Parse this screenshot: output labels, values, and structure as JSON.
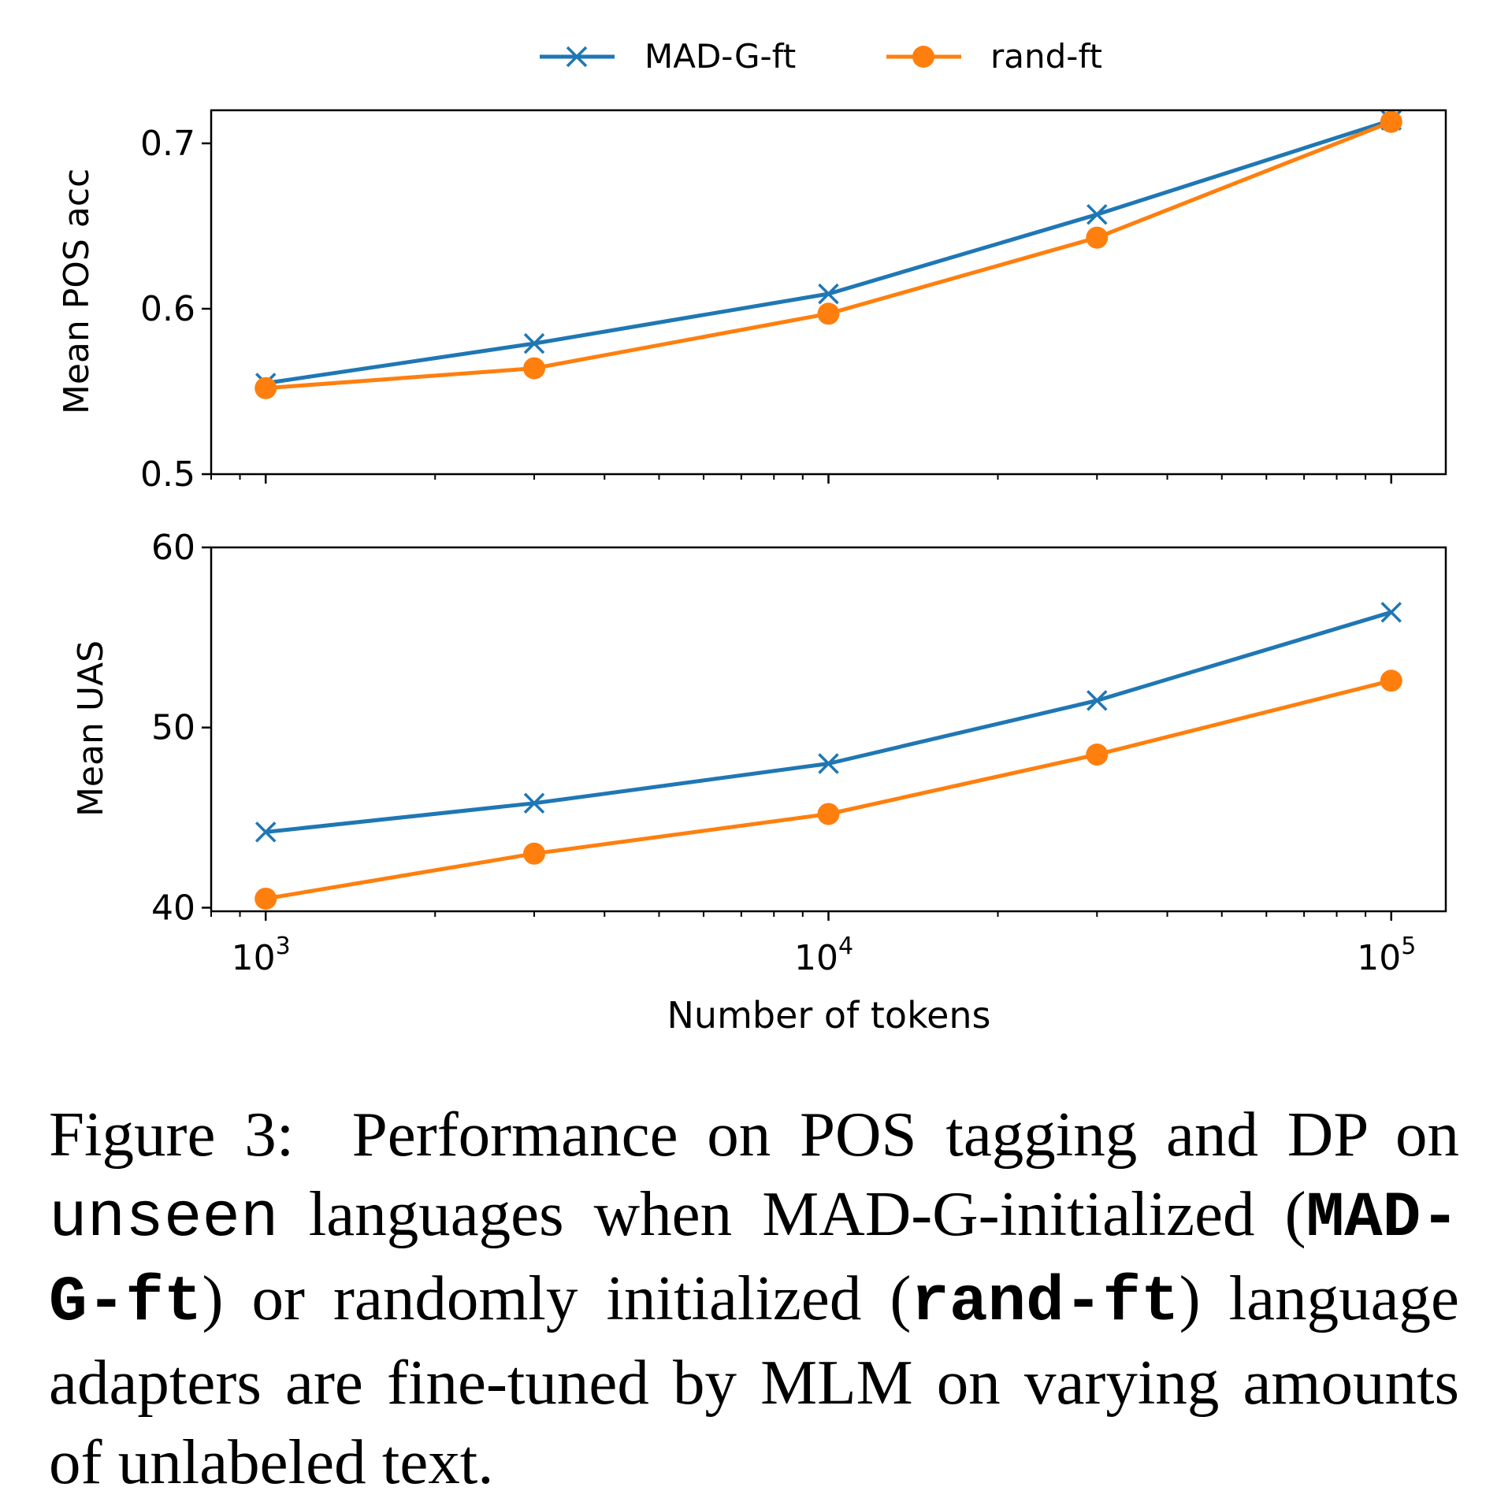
{
  "chart_data": [
    {
      "type": "line",
      "panel": "top",
      "title": "",
      "xlabel": "",
      "ylabel": "Mean POS acc",
      "xscale": "log",
      "xlim": [
        800,
        125000
      ],
      "ylim": [
        0.5,
        0.72
      ],
      "yticks": [
        0.5,
        0.6,
        0.7
      ],
      "ytick_labels": [
        "0.5",
        "0.6",
        "0.7"
      ],
      "x": [
        1000,
        3000,
        10000,
        30000,
        100000
      ],
      "series": [
        {
          "name": "MAD-G-ft",
          "color": "#1f77b4",
          "marker": "x",
          "values": [
            0.555,
            0.579,
            0.609,
            0.657,
            0.714
          ]
        },
        {
          "name": "rand-ft",
          "color": "#ff7f0e",
          "marker": "o",
          "values": [
            0.552,
            0.564,
            0.597,
            0.643,
            0.713
          ]
        }
      ],
      "grid": false
    },
    {
      "type": "line",
      "panel": "bottom",
      "title": "",
      "xlabel": "Number of tokens",
      "ylabel": "Mean UAS",
      "xscale": "log",
      "xlim": [
        800,
        125000
      ],
      "ylim": [
        39.8,
        60
      ],
      "yticks": [
        40,
        50,
        60
      ],
      "ytick_labels": [
        "40",
        "50",
        "60"
      ],
      "xticks": [
        1000,
        10000,
        100000
      ],
      "xtick_labels": [
        {
          "base": "10",
          "exp": "3"
        },
        {
          "base": "10",
          "exp": "4"
        },
        {
          "base": "10",
          "exp": "5"
        }
      ],
      "x": [
        1000,
        3000,
        10000,
        30000,
        100000
      ],
      "series": [
        {
          "name": "MAD-G-ft",
          "color": "#1f77b4",
          "marker": "x",
          "values": [
            44.2,
            45.8,
            48.0,
            51.5,
            56.4
          ]
        },
        {
          "name": "rand-ft",
          "color": "#ff7f0e",
          "marker": "o",
          "values": [
            40.5,
            43.0,
            45.2,
            48.5,
            52.6
          ]
        }
      ],
      "grid": false
    }
  ],
  "legend": {
    "placement": "top-center",
    "entries": [
      {
        "label": "MAD-G-ft",
        "color": "#1f77b4",
        "marker": "x"
      },
      {
        "label": "rand-ft",
        "color": "#ff7f0e",
        "marker": "o"
      }
    ]
  },
  "caption": {
    "label": "Figure 3:",
    "part1": "Performance on POS tagging and DP on",
    "code_unseen": "unseen",
    "part2": "languages when MAD-G-initialized (",
    "code_madg": "MAD-G-ft",
    "part3": ") or randomly initialized (",
    "code_rand": "rand-ft",
    "part4": ") lan­guage adapters are fine-tuned by MLM on varying amounts of unlabeled text."
  }
}
